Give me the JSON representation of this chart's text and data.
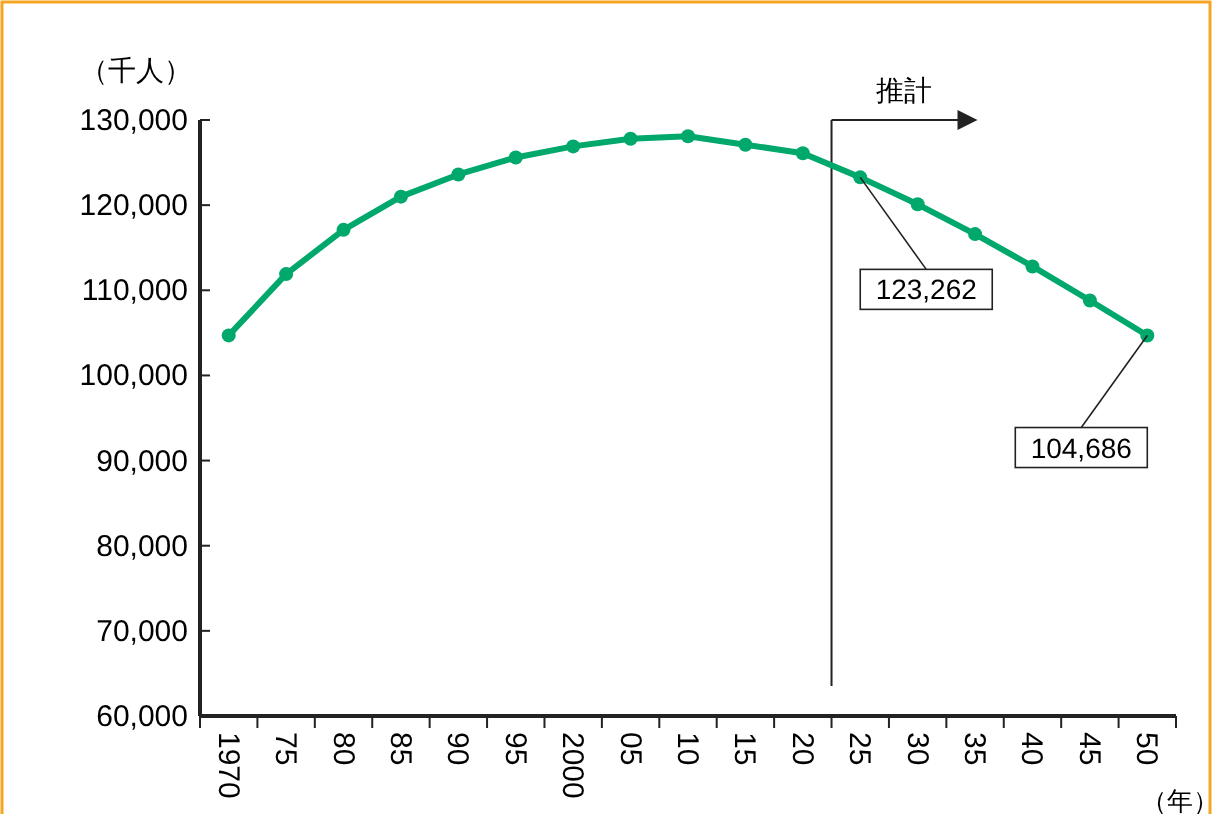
{
  "chart_data": {
    "type": "line",
    "ylabel": "（千人）",
    "xlabel": "（年）",
    "categories": [
      "1970",
      "75",
      "80",
      "85",
      "90",
      "95",
      "2000",
      "05",
      "10",
      "15",
      "20",
      "25",
      "30",
      "35",
      "40",
      "45",
      "50"
    ],
    "series": [
      {
        "color": "#00a86b",
        "values": [
          104700,
          111900,
          117100,
          121000,
          123600,
          125600,
          126900,
          127800,
          128100,
          127100,
          126100,
          123262,
          120100,
          116600,
          112800,
          108800,
          104686
        ],
        "value_labels": [
          null,
          null,
          null,
          null,
          null,
          null,
          null,
          null,
          null,
          null,
          null,
          "123,262",
          null,
          null,
          null,
          null,
          "104,686"
        ]
      }
    ],
    "ylim": [
      60000,
      130000
    ],
    "yticks": [
      {
        "value": 60000,
        "label": "60,000"
      },
      {
        "value": 70000,
        "label": "70,000"
      },
      {
        "value": 80000,
        "label": "80,000"
      },
      {
        "value": 90000,
        "label": "90,000"
      },
      {
        "value": 100000,
        "label": "100,000"
      },
      {
        "value": 110000,
        "label": "110,000"
      },
      {
        "value": 120000,
        "label": "120,000"
      },
      {
        "value": 130000,
        "label": "130,000"
      }
    ],
    "marker": "circle",
    "grid": false,
    "annotations": [
      "推計"
    ]
  }
}
